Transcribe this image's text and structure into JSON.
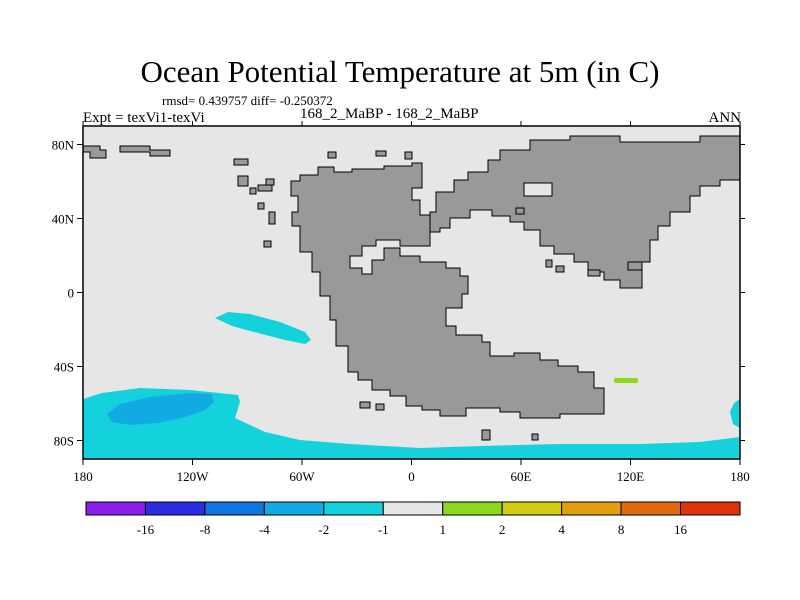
{
  "chart_data": {
    "type": "heatmap",
    "title": "Ocean Potential Temperature at 5m (in C)",
    "stats_text": "rmsd= 0.439757 diff= -0.250372",
    "experiment_text": "Expt = texVi1-texVi",
    "case_text": "168_2_MaBP - 168_2_MaBP",
    "season": "ANN",
    "x_range": [
      -180,
      180
    ],
    "y_range": [
      -90,
      90
    ],
    "x_ticks": [
      {
        "value": -180,
        "label": "180"
      },
      {
        "value": -120,
        "label": "120W"
      },
      {
        "value": -60,
        "label": "60W"
      },
      {
        "value": 0,
        "label": "0"
      },
      {
        "value": 60,
        "label": "60E"
      },
      {
        "value": 120,
        "label": "120E"
      },
      {
        "value": 180,
        "label": "180"
      }
    ],
    "y_ticks": [
      {
        "value": 80,
        "label": "80N"
      },
      {
        "value": 40,
        "label": "40N"
      },
      {
        "value": 0,
        "label": "0"
      },
      {
        "value": -40,
        "label": "40S"
      },
      {
        "value": -80,
        "label": "80S"
      }
    ],
    "colorbar": {
      "labels": [
        "-16",
        "-8",
        "-4",
        "-2",
        "-1",
        "1",
        "2",
        "4",
        "8",
        "16"
      ],
      "colors": [
        "#8a1ee6",
        "#2a2ee0",
        "#0f78e0",
        "#12aae2",
        "#13d2dc",
        "#e6e6e6",
        "#8cd81c",
        "#d4cc10",
        "#e2a00c",
        "#e06a0c",
        "#e0320c"
      ]
    },
    "background_color": "#e6e6e6",
    "land_color": "#999999",
    "anomalies": [
      {
        "name": "southern-ocean-band",
        "level": "-2 to -1",
        "lon_range": [
          -180,
          180
        ],
        "lat_range": [
          -90,
          -50
        ]
      },
      {
        "name": "south-pacific-core",
        "level": "-4 to -2",
        "lon_range": [
          -165,
          -125
        ],
        "lat_range": [
          -70,
          -58
        ]
      },
      {
        "name": "tropical-pacific-patch",
        "level": "-2 to -1",
        "lon_range": [
          -108,
          -55
        ],
        "lat_range": [
          -28,
          -12
        ]
      },
      {
        "name": "indian-ocean-patch",
        "level": "1 to 2",
        "lon_range": [
          112,
          125
        ],
        "lat_range": [
          -48,
          -45
        ]
      },
      {
        "name": "dateline-patch",
        "level": "-2 to -1",
        "lon_range": [
          173,
          180
        ],
        "lat_range": [
          -78,
          -56
        ]
      }
    ]
  }
}
